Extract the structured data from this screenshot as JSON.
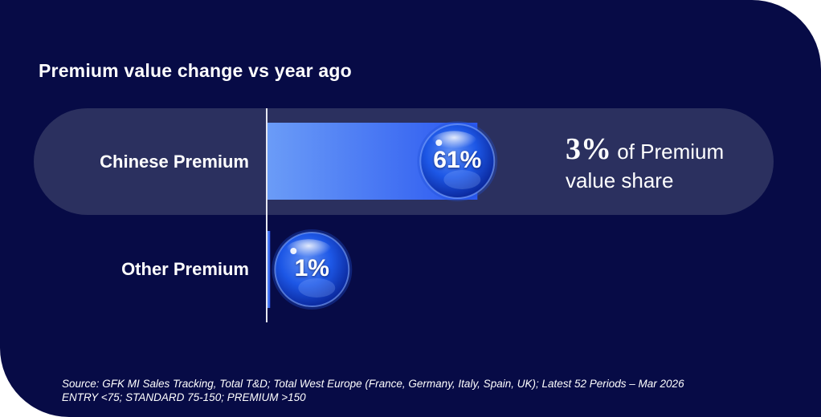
{
  "chart_data": {
    "type": "bar",
    "orientation": "horizontal",
    "title": "Premium value change vs year ago",
    "categories": [
      "Chinese Premium",
      "Other Premium"
    ],
    "values": [
      61,
      1
    ],
    "value_labels": [
      "61%",
      "1%"
    ],
    "unit": "%",
    "highlighted_category": "Chinese Premium",
    "xlim": [
      0,
      100
    ],
    "grid": false,
    "legend": "none"
  },
  "callout": {
    "share_value": "3%",
    "share_line1_suffix": " of Premium",
    "share_line2": "value share"
  },
  "source": {
    "line1": "Source: GFK MI Sales Tracking, Total T&D; Total West Europe (France, Germany, Italy, Spain, UK); Latest 52 Periods – Mar 2026",
    "line2": "ENTRY <75; STANDARD 75-150; PREMIUM >150"
  },
  "colors": {
    "background": "#070b46",
    "highlight_band": "#2b305f",
    "bar_start": "#6b9cf7",
    "bar_end": "#2a57f0",
    "bubble": "#1d57e6",
    "text": "#ffffff"
  }
}
